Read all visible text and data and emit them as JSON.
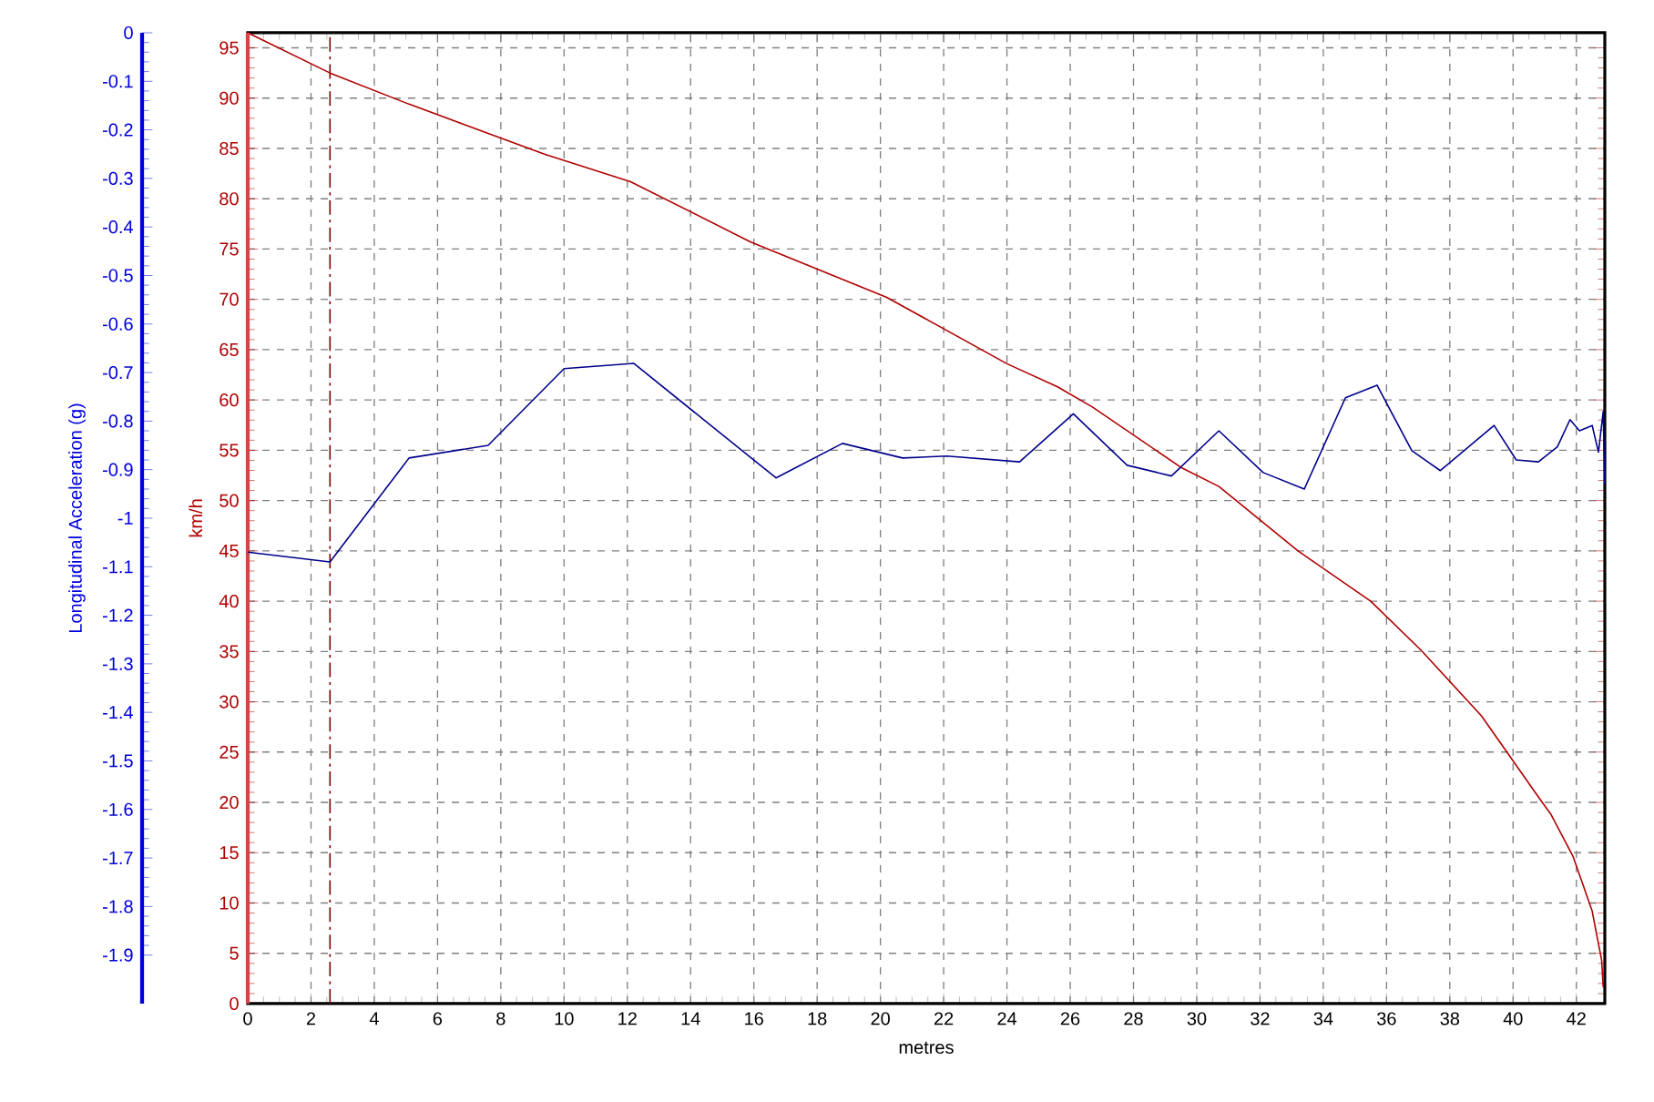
{
  "chart_data": {
    "type": "line",
    "xlabel": "metres",
    "ylabel": "km/h",
    "y2label": "Longitudinal Acceleration (g)",
    "xlim": [
      0,
      42.9
    ],
    "xticks": [
      0,
      2,
      4,
      6,
      8,
      10,
      12,
      14,
      16,
      18,
      20,
      22,
      24,
      26,
      28,
      30,
      32,
      34,
      36,
      38,
      40,
      42
    ],
    "ylim": [
      0,
      96.5
    ],
    "yticks": [
      0,
      5,
      10,
      15,
      20,
      25,
      30,
      35,
      40,
      45,
      50,
      55,
      60,
      65,
      70,
      75,
      80,
      85,
      90,
      95
    ],
    "y2lim": [
      -2,
      0
    ],
    "y2ticks": [
      0,
      -0.1,
      -0.2,
      -0.3,
      -0.4,
      -0.5,
      -0.6,
      -0.7,
      -0.8,
      -0.9,
      -1,
      -1.1,
      -1.2,
      -1.3,
      -1.4,
      -1.5,
      -1.6,
      -1.7,
      -1.8,
      -1.9
    ],
    "grid": true,
    "series": [
      {
        "color": "#b00000",
        "x": [
          0,
          2.6,
          5.1,
          7.6,
          9.4,
          12.1,
          15.9,
          20.2,
          24.0,
          25.6,
          26.7,
          29.5,
          30.7,
          33.2,
          35.5,
          37.1,
          39.0,
          40.9,
          41.2,
          41.9,
          42.5,
          42.8,
          42.85
        ],
        "values": [
          96.5,
          92.5,
          89.4,
          86.5,
          84.4,
          81.7,
          75.7,
          70.2,
          63.6,
          61.3,
          59.3,
          53.3,
          51.4,
          45.0,
          40.0,
          35.1,
          28.6,
          20.1,
          18.8,
          14.6,
          9.2,
          4.3,
          1.6
        ]
      },
      {
        "color": "#00008b",
        "axis": "y2",
        "x": [
          0,
          2.6,
          5.1,
          7.6,
          10.0,
          12.2,
          16.7,
          18.8,
          20.7,
          22.1,
          24.4,
          26.1,
          27.8,
          29.2,
          30.7,
          32.1,
          33.4,
          34.7,
          35.7,
          36.8,
          37.7,
          39.4,
          40.1,
          40.8,
          41.4,
          41.8,
          42.1,
          42.5,
          42.7,
          42.85,
          42.9
        ],
        "values": [
          -1.07,
          -1.09,
          -0.876,
          -0.85,
          -0.692,
          -0.681,
          -0.917,
          -0.846,
          -0.876,
          -0.872,
          -0.884,
          -0.785,
          -0.891,
          -0.913,
          -0.82,
          -0.906,
          -0.94,
          -0.752,
          -0.726,
          -0.861,
          -0.902,
          -0.809,
          -0.88,
          -0.884,
          -0.853,
          -0.797,
          -0.82,
          -0.809,
          -0.864,
          -0.78,
          -0.93
        ]
      }
    ],
    "ref_lines": [
      {
        "axis": "x",
        "value": 2.6,
        "color": "#800000",
        "line_style": "dashed"
      }
    ]
  }
}
